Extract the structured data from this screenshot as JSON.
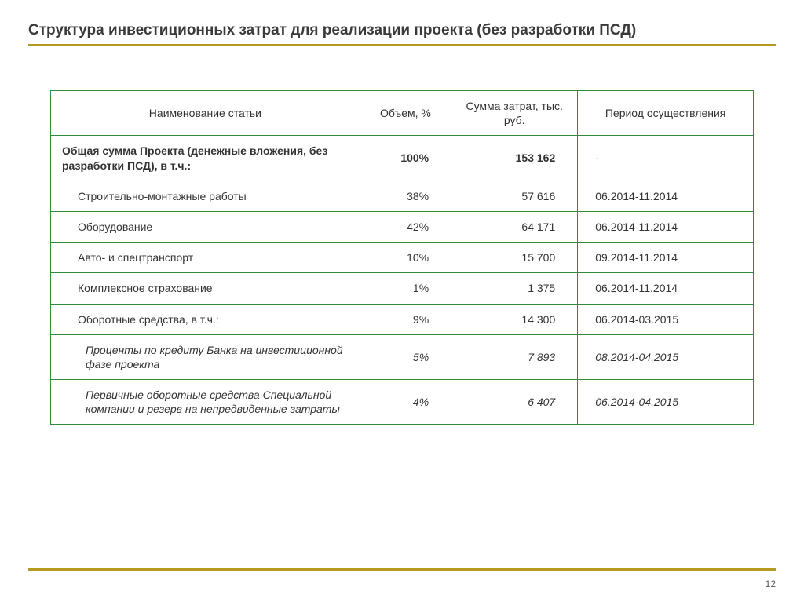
{
  "title": "Структура инвестиционных затрат для реализации проекта (без разработки ПСД)",
  "page_number": "12",
  "colors": {
    "accent_line": "#b79a1f",
    "table_border": "#2e8b3e",
    "text": "#333333",
    "background": "#ffffff"
  },
  "table": {
    "columns": [
      {
        "key": "name",
        "label": "Наименование статьи",
        "width_pct": 44,
        "align": "left"
      },
      {
        "key": "volume",
        "label": "Объем, %",
        "width_pct": 13,
        "align": "right"
      },
      {
        "key": "sum",
        "label": "Сумма затрат, тыс. руб.",
        "width_pct": 18,
        "align": "right"
      },
      {
        "key": "period",
        "label": "Период осуществления",
        "width_pct": 25,
        "align": "left"
      }
    ],
    "rows": [
      {
        "name": "Общая сумма Проекта (денежные вложения, без разработки ПСД), в т.ч.:",
        "volume": "100%",
        "sum": "153 162",
        "period": "-",
        "style": "total",
        "indent": 0
      },
      {
        "name": "Строительно-монтажные работы",
        "volume": "38%",
        "sum": "57 616",
        "period": "06.2014-11.2014",
        "style": "normal",
        "indent": 1
      },
      {
        "name": "Оборудование",
        "volume": "42%",
        "sum": "64 171",
        "period": "06.2014-11.2014",
        "style": "normal",
        "indent": 1
      },
      {
        "name": "Авто- и спецтранспорт",
        "volume": "10%",
        "sum": "15 700",
        "period": "09.2014-11.2014",
        "style": "normal",
        "indent": 1
      },
      {
        "name": "Комплексное страхование",
        "volume": "1%",
        "sum": "1 375",
        "period": "06.2014-11.2014",
        "style": "normal",
        "indent": 1
      },
      {
        "name": "Оборотные средства, в т.ч.:",
        "volume": "9%",
        "sum": "14 300",
        "period": "06.2014-03.2015",
        "style": "normal",
        "indent": 1
      },
      {
        "name": "Проценты по кредиту Банка на инвестиционной фазе проекта",
        "volume": "5%",
        "sum": "7 893",
        "period": "08.2014-04.2015",
        "style": "italic",
        "indent": 2
      },
      {
        "name": "Первичные оборотные средства Специальной компании и резерв на непредвиденные затраты",
        "volume": "4%",
        "sum": "6 407",
        "period": "06.2014-04.2015",
        "style": "italic",
        "indent": 2
      }
    ]
  }
}
